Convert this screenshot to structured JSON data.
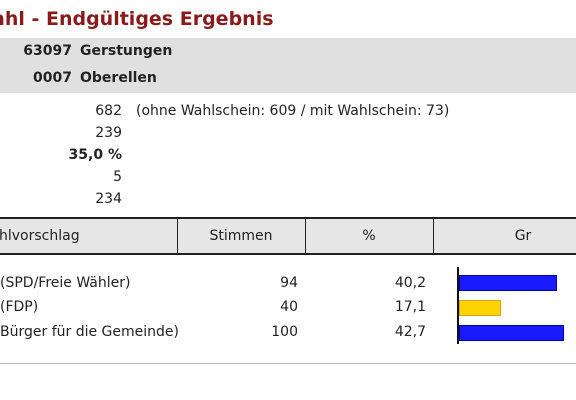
{
  "header": {
    "title": "ahl - Endgültiges Ergebnis"
  },
  "location": {
    "district": {
      "code": "63097",
      "name": "Gerstungen"
    },
    "area": {
      "code": "0007",
      "name": "Oberellen"
    }
  },
  "stats": [
    {
      "value": "682",
      "bold": false,
      "note": "(ohne Wahlschein: 609 / mit Wahlschein: 73)"
    },
    {
      "value": "239",
      "bold": false
    },
    {
      "value": "35,0 %",
      "bold": true
    },
    {
      "value": "5",
      "bold": false
    },
    {
      "value": "234",
      "bold": false
    }
  ],
  "table": {
    "headers": [
      "hlvorschlag",
      "Stimmen",
      "%",
      "Gr"
    ],
    "rows": [
      {
        "party": "(SPD/Freie Wähler)",
        "votes": "94",
        "pct": "40,2",
        "share": 40.2,
        "color": "#1a1aff",
        "border": "#0000aa"
      },
      {
        "party": "(FDP)",
        "votes": "40",
        "pct": "17,1",
        "share": 17.1,
        "color": "#ffd200",
        "border": "#d4a800"
      },
      {
        "party": "Bürger für die Gemeinde)",
        "votes": "100",
        "pct": "42,7",
        "share": 42.7,
        "color": "#1a1aff",
        "border": "#0000aa"
      }
    ]
  }
}
